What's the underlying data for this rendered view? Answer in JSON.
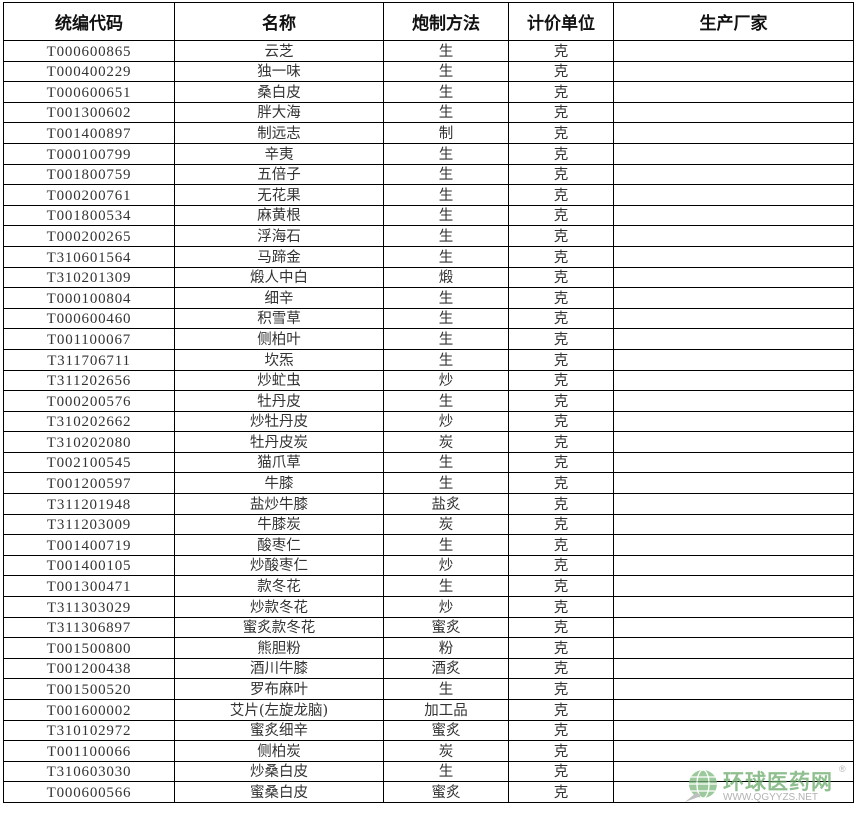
{
  "headers": [
    "统编代码",
    "名称",
    "炮制方法",
    "计价单位",
    "生产厂家"
  ],
  "rows": [
    [
      "T000600865",
      "云芝",
      "生",
      "克",
      ""
    ],
    [
      "T000400229",
      "独一味",
      "生",
      "克",
      ""
    ],
    [
      "T000600651",
      "桑白皮",
      "生",
      "克",
      ""
    ],
    [
      "T001300602",
      "胖大海",
      "生",
      "克",
      ""
    ],
    [
      "T001400897",
      "制远志",
      "制",
      "克",
      ""
    ],
    [
      "T000100799",
      "辛夷",
      "生",
      "克",
      ""
    ],
    [
      "T001800759",
      "五倍子",
      "生",
      "克",
      ""
    ],
    [
      "T000200761",
      "无花果",
      "生",
      "克",
      ""
    ],
    [
      "T001800534",
      "麻黄根",
      "生",
      "克",
      ""
    ],
    [
      "T000200265",
      "浮海石",
      "生",
      "克",
      ""
    ],
    [
      "T310601564",
      "马蹄金",
      "生",
      "克",
      ""
    ],
    [
      "T310201309",
      "煅人中白",
      "煅",
      "克",
      ""
    ],
    [
      "T000100804",
      "细辛",
      "生",
      "克",
      ""
    ],
    [
      "T000600460",
      "积雪草",
      "生",
      "克",
      ""
    ],
    [
      "T001100067",
      "侧柏叶",
      "生",
      "克",
      ""
    ],
    [
      "T311706711",
      "坎炁",
      "生",
      "克",
      ""
    ],
    [
      "T311202656",
      "炒虻虫",
      "炒",
      "克",
      ""
    ],
    [
      "T000200576",
      "牡丹皮",
      "生",
      "克",
      ""
    ],
    [
      "T310202662",
      "炒牡丹皮",
      "炒",
      "克",
      ""
    ],
    [
      "T310202080",
      "牡丹皮炭",
      "炭",
      "克",
      ""
    ],
    [
      "T002100545",
      "猫爪草",
      "生",
      "克",
      ""
    ],
    [
      "T001200597",
      "牛膝",
      "生",
      "克",
      ""
    ],
    [
      "T311201948",
      "盐炒牛膝",
      "盐炙",
      "克",
      ""
    ],
    [
      "T311203009",
      "牛膝炭",
      "炭",
      "克",
      ""
    ],
    [
      "T001400719",
      "酸枣仁",
      "生",
      "克",
      ""
    ],
    [
      "T001400105",
      "炒酸枣仁",
      "炒",
      "克",
      ""
    ],
    [
      "T001300471",
      "款冬花",
      "生",
      "克",
      ""
    ],
    [
      "T311303029",
      "炒款冬花",
      "炒",
      "克",
      ""
    ],
    [
      "T311306897",
      "蜜炙款冬花",
      "蜜炙",
      "克",
      ""
    ],
    [
      "T001500800",
      "熊胆粉",
      "粉",
      "克",
      ""
    ],
    [
      "T001200438",
      "酒川牛膝",
      "酒炙",
      "克",
      ""
    ],
    [
      "T001500520",
      "罗布麻叶",
      "生",
      "克",
      ""
    ],
    [
      "T001600002",
      "艾片(左旋龙脑)",
      "加工品",
      "克",
      ""
    ],
    [
      "T310102972",
      "蜜炙细辛",
      "蜜炙",
      "克",
      ""
    ],
    [
      "T001100066",
      "侧柏炭",
      "炭",
      "克",
      ""
    ],
    [
      "T310603030",
      "炒桑白皮",
      "生",
      "克",
      ""
    ],
    [
      "T000600566",
      "蜜桑白皮",
      "蜜炙",
      "克",
      ""
    ]
  ],
  "watermark": {
    "title": "环球医药网",
    "url": "WWW.QGYYZS.NET",
    "mark": "®",
    "color": "#6aaa6a"
  }
}
